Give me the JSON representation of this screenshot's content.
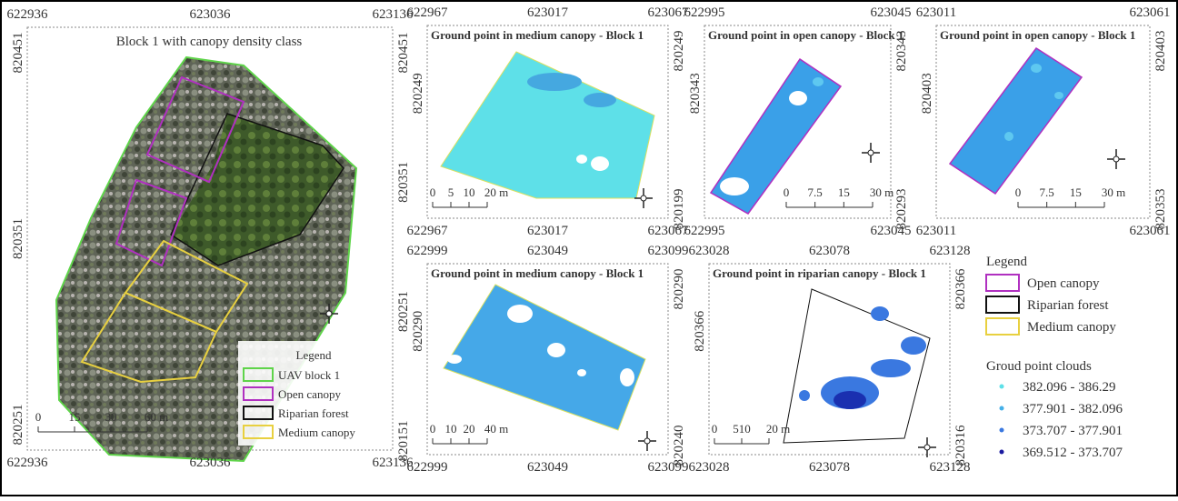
{
  "panels": [
    {
      "title": "Block 1 with canopy density class",
      "top_ticks": [
        622936,
        623036,
        623136
      ],
      "bottom_ticks": [
        622936,
        623036,
        623136
      ],
      "left_ticks": [
        820451,
        820351,
        820251
      ],
      "right_ticks": [
        820451,
        820351,
        820251,
        820151
      ],
      "scale": [
        "0",
        "15",
        "30",
        "60 m"
      ]
    },
    {
      "title": "Ground point in medium canopy - Block 1",
      "top_ticks": [
        622967,
        623017,
        623067
      ],
      "bottom_ticks": [
        622967,
        623017,
        623067
      ],
      "left_ticks": [
        820249
      ],
      "right_ticks": [
        820249,
        820199
      ],
      "scale": [
        "0",
        "5",
        "10",
        "20 m"
      ]
    },
    {
      "title": "Ground point in open canopy - Block 1",
      "top_ticks": [
        622995,
        623045
      ],
      "bottom_ticks": [
        622995,
        623045
      ],
      "left_ticks": [
        820343
      ],
      "right_ticks": [
        820343,
        820293
      ],
      "scale": [
        "0",
        "7.5",
        "15",
        "30 m"
      ]
    },
    {
      "title": "Ground point in  open canopy - Block 1",
      "top_ticks": [
        623011,
        623061
      ],
      "bottom_ticks": [
        623011,
        623061
      ],
      "left_ticks": [
        820403
      ],
      "right_ticks": [
        820403,
        820353
      ],
      "scale": [
        "0",
        "7.5",
        "15",
        "30 m"
      ]
    },
    {
      "title": "Ground point in  medium canopy - Block 1",
      "top_ticks": [
        622999,
        623049,
        623099
      ],
      "bottom_ticks": [
        622999,
        623049,
        623099
      ],
      "left_ticks": [
        820290
      ],
      "right_ticks": [
        820290,
        820240
      ],
      "scale": [
        "0",
        "10",
        "20",
        "40 m"
      ]
    },
    {
      "title": "Ground point in riparian canopy - Block 1",
      "top_ticks": [
        623028,
        623078,
        623128
      ],
      "bottom_ticks": [
        623028,
        623078,
        623128
      ],
      "left_ticks": [
        820366
      ],
      "right_ticks": [
        820366,
        820316
      ],
      "scale": [
        "0",
        "510",
        "20 m"
      ]
    }
  ],
  "block_legend": {
    "title": "Legend",
    "items": [
      "UAV block 1",
      "Open canopy",
      "Riparian forest",
      "Medium canopy"
    ]
  },
  "legend": {
    "title": "Legend",
    "items": [
      "Open canopy",
      "Riparian forest",
      "Medium canopy"
    ],
    "point_cloud_title": "Groud point clouds",
    "ranges": [
      "382.096 - 386.29",
      "377.901 - 382.096",
      "373.707 - 377.901",
      "369.512 - 373.707"
    ]
  }
}
